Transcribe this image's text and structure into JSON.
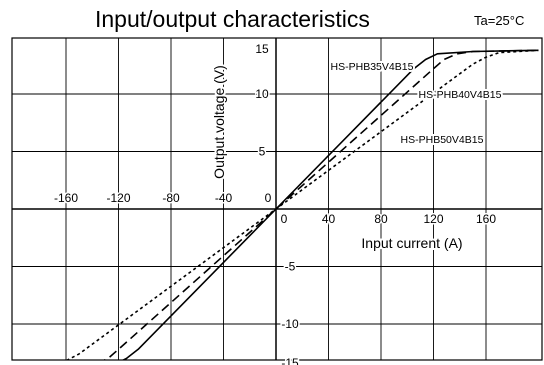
{
  "chart_data": {
    "type": "line",
    "title": "Input/output characteristics",
    "condition": "Ta=25°C",
    "xlabel": "Input current (A)",
    "ylabel": "Output voltage (V)",
    "xlim": [
      -200,
      200
    ],
    "ylim": [
      -15,
      15
    ],
    "grid": true,
    "x_ticks": [
      -160,
      -120,
      -80,
      -40,
      0,
      40,
      80,
      120,
      160
    ],
    "x_tick_labels": [
      "-160",
      "-120",
      "-80",
      "-40",
      "0",
      "40",
      "80",
      "120",
      "160"
    ],
    "y_ticks": [
      15,
      10,
      5,
      -5,
      -10,
      -15
    ],
    "y_tick_labels": [
      "15",
      "10",
      "5",
      "-5",
      "-10",
      "-15"
    ],
    "series": [
      {
        "name": "HS-PHB35V4B15",
        "style": "solid",
        "x": [
          -200,
          -150,
          -123,
          -114,
          -105,
          0,
          105,
          114,
          123,
          150,
          200
        ],
        "y": [
          -13.8,
          -13.7,
          -13.5,
          -13.0,
          -12.2,
          0,
          12.2,
          13.0,
          13.5,
          13.7,
          13.8
        ]
      },
      {
        "name": "HS-PHB40V4B15",
        "style": "dashed",
        "x": [
          -200,
          -150,
          -138,
          -128,
          -120,
          0,
          120,
          128,
          138,
          150,
          200
        ],
        "y": [
          -13.8,
          -13.7,
          -13.5,
          -13.0,
          -12.2,
          0,
          12.2,
          13.0,
          13.5,
          13.7,
          13.8
        ]
      },
      {
        "name": "HS-PHB50V4B15",
        "style": "dotted",
        "x": [
          -200,
          -170,
          -160,
          -150,
          0,
          150,
          160,
          170,
          200
        ],
        "y": [
          -13.8,
          -13.6,
          -13.2,
          -12.6,
          0,
          12.6,
          13.2,
          13.6,
          13.8
        ]
      }
    ]
  }
}
